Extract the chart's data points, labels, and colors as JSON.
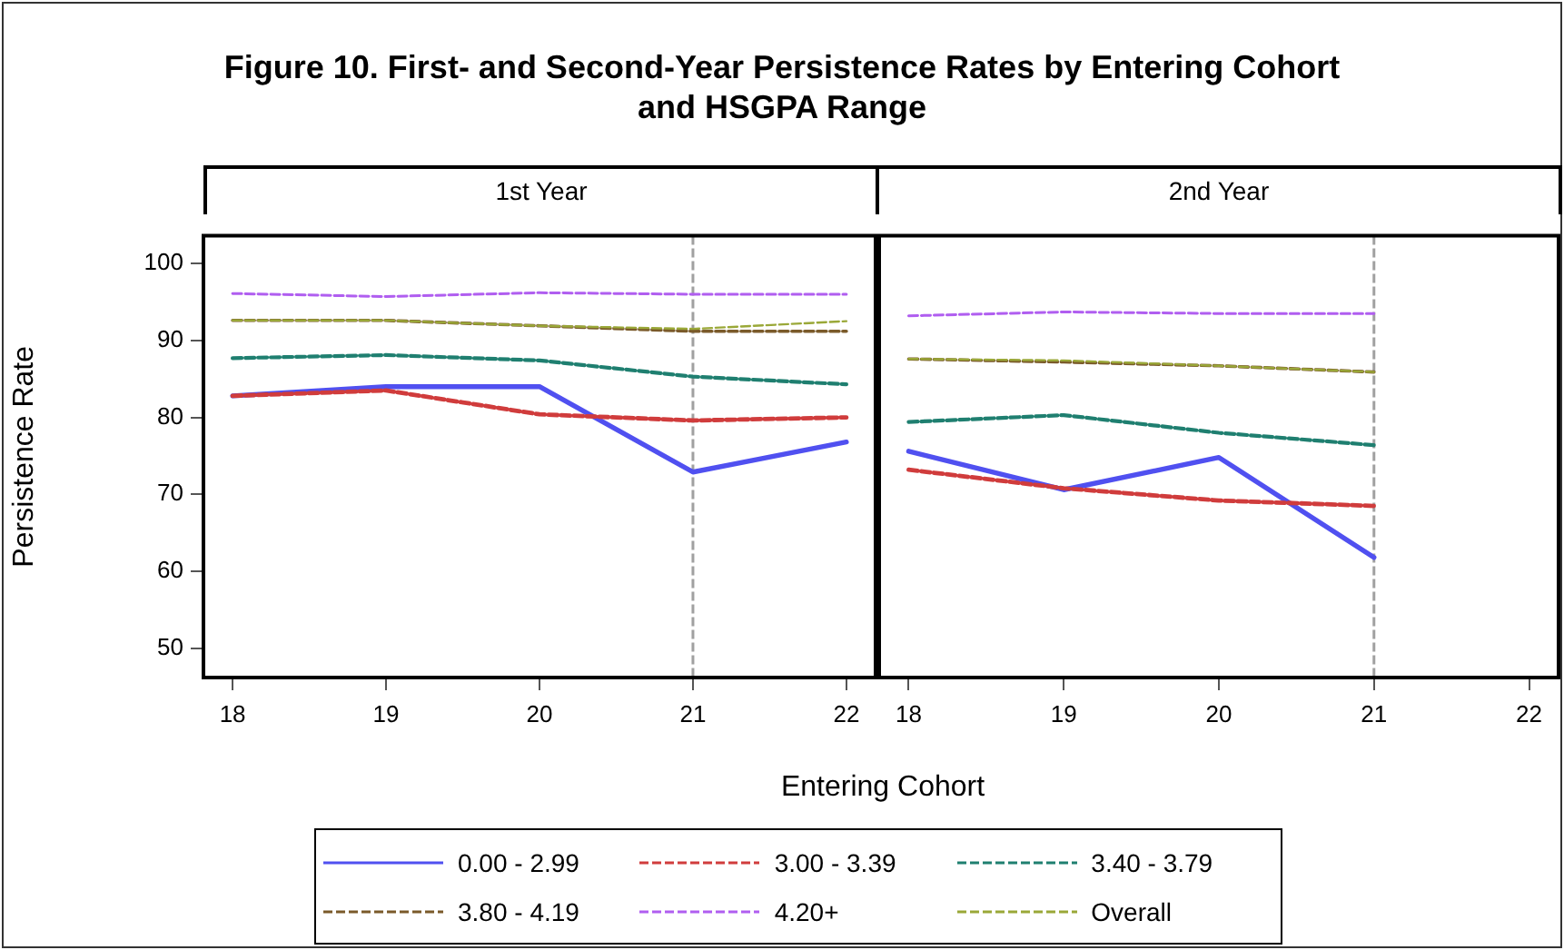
{
  "chart_data": [
    {
      "type": "line",
      "title": "Figure 10. First- and Second-Year Persistence Rates by Entering Cohort and HSGPA Range",
      "subtitle": "1st Year",
      "xlabel": "Entering Cohort",
      "ylabel": "Persistence Rate",
      "x": [
        18,
        19,
        20,
        21,
        22
      ],
      "xlim": [
        17.81,
        22.19
      ],
      "xticks": [
        18,
        19,
        20,
        21,
        22
      ],
      "ylim": [
        46.2,
        103.6
      ],
      "yticks": [
        50,
        60,
        70,
        80,
        90,
        100
      ],
      "legend": "bottom",
      "grid": false,
      "ref_lines": [
        {
          "axis": "x",
          "value": 21,
          "color": "#a0a0a0",
          "line_style": "dashed"
        }
      ],
      "series": [
        {
          "name": "0.00 - 2.99",
          "color": "#5050f0",
          "line_style": "solid",
          "values": [
            82.8,
            84.0,
            84.0,
            72.9,
            76.8
          ]
        },
        {
          "name": "3.00 - 3.39",
          "color": "#d03c3c",
          "line_style": "dashed",
          "values": [
            82.8,
            83.5,
            80.4,
            79.6,
            80.0
          ]
        },
        {
          "name": "3.40 - 3.79",
          "color": "#1f7f70",
          "line_style": "dashed",
          "values": [
            87.7,
            88.1,
            87.4,
            85.3,
            84.3
          ]
        },
        {
          "name": "3.80 - 4.19",
          "color": "#7a5a2a",
          "line_style": "dashed",
          "values": [
            92.6,
            92.6,
            91.9,
            91.2,
            91.2
          ]
        },
        {
          "name": "4.20+",
          "color": "#b05ef0",
          "line_style": "dashed",
          "values": [
            96.1,
            95.7,
            96.2,
            96.0,
            96.0
          ]
        },
        {
          "name": "Overall",
          "color": "#9aa838",
          "line_style": "dashed",
          "values": [
            92.6,
            92.6,
            91.9,
            91.5,
            92.5
          ]
        }
      ]
    },
    {
      "type": "line",
      "subtitle": "2nd Year",
      "x": [
        18,
        19,
        20,
        21
      ],
      "xlim": [
        17.81,
        22.19
      ],
      "xticks": [
        18,
        19,
        20,
        21,
        22
      ],
      "ylim": [
        46.2,
        103.6
      ],
      "yticks": [
        50,
        60,
        70,
        80,
        90,
        100
      ],
      "tick_labels": "x",
      "grid": false,
      "ref_lines": [
        {
          "axis": "x",
          "value": 21,
          "color": "#a0a0a0",
          "line_style": "dashed"
        }
      ],
      "series": [
        {
          "color": "#5050f0",
          "line_style": "solid",
          "values": [
            75.6,
            70.6,
            74.8,
            61.8
          ]
        },
        {
          "color": "#d03c3c",
          "line_style": "dashed",
          "values": [
            73.2,
            70.8,
            69.2,
            68.5
          ]
        },
        {
          "color": "#1f7f70",
          "line_style": "dashed",
          "values": [
            79.4,
            80.3,
            78.0,
            76.4
          ]
        },
        {
          "color": "#7a5a2a",
          "line_style": "dashed",
          "values": [
            87.6,
            87.2,
            86.7,
            85.9
          ]
        },
        {
          "color": "#b05ef0",
          "line_style": "dashed",
          "values": [
            93.2,
            93.7,
            93.5,
            93.5
          ]
        },
        {
          "color": "#9aa838",
          "line_style": "dashed",
          "values": [
            87.6,
            87.4,
            86.7,
            85.9
          ]
        }
      ]
    }
  ]
}
